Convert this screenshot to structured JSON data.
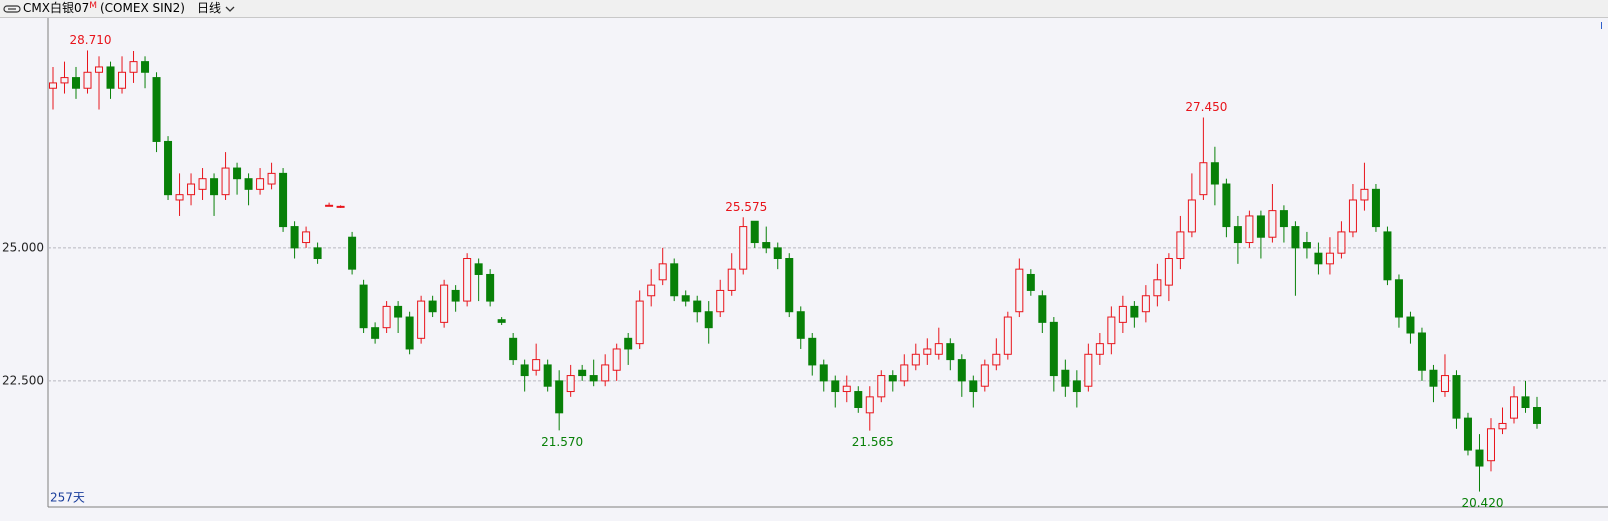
{
  "header": {
    "symbol": "CMX白银07",
    "flag": "M",
    "exchange": "(COMEX SIN2)",
    "period": "日线"
  },
  "chart_data": {
    "type": "candlestick",
    "days_label": "257天",
    "corner_mark": "I",
    "up_color": "#e8141b",
    "down_color": "#088008",
    "ylim": [
      20.13,
      29.32
    ],
    "yticks": [
      {
        "value": 22.5,
        "label": "22.500"
      },
      {
        "value": 25,
        "label": "25.000"
      }
    ],
    "grid": true,
    "annotations": [
      {
        "value": 28.71,
        "label": "28.710"
      },
      {
        "value": 25.575,
        "label": "25.575"
      },
      {
        "value": 27.45,
        "label": "27.450"
      },
      {
        "value": 21.57,
        "label": "21.570"
      },
      {
        "value": 21.565,
        "label": "21.565"
      },
      {
        "value": 20.42,
        "label": "20.420"
      }
    ],
    "candles": [
      [
        28.0,
        28.4,
        27.6,
        28.1
      ],
      [
        28.1,
        28.5,
        27.9,
        28.2
      ],
      [
        28.2,
        28.4,
        27.8,
        28.0
      ],
      [
        28.0,
        28.71,
        27.9,
        28.3
      ],
      [
        28.3,
        28.6,
        27.6,
        28.4
      ],
      [
        28.4,
        28.5,
        27.8,
        28.0
      ],
      [
        28.0,
        28.6,
        27.9,
        28.3
      ],
      [
        28.3,
        28.7,
        28.1,
        28.5
      ],
      [
        28.5,
        28.6,
        28.0,
        28.3
      ],
      [
        28.2,
        28.3,
        26.8,
        27.0
      ],
      [
        27.0,
        27.1,
        25.9,
        26.0
      ],
      [
        25.9,
        26.4,
        25.6,
        26.0
      ],
      [
        26.0,
        26.4,
        25.8,
        26.2
      ],
      [
        26.1,
        26.5,
        25.9,
        26.3
      ],
      [
        26.3,
        26.4,
        25.6,
        26.0
      ],
      [
        26.0,
        26.8,
        25.9,
        26.5
      ],
      [
        26.5,
        26.6,
        26.0,
        26.3
      ],
      [
        26.3,
        26.4,
        25.8,
        26.1
      ],
      [
        26.1,
        26.5,
        26.0,
        26.3
      ],
      [
        26.2,
        26.6,
        26.1,
        26.4
      ],
      [
        26.4,
        26.5,
        25.3,
        25.4
      ],
      [
        25.4,
        25.5,
        24.8,
        25.0
      ],
      [
        25.1,
        25.4,
        25.0,
        25.3
      ],
      [
        25.0,
        25.1,
        24.7,
        24.8
      ],
      [
        25.8,
        25.85,
        25.78,
        25.8
      ],
      [
        25.78,
        25.8,
        25.75,
        25.78
      ],
      [
        25.2,
        25.3,
        24.5,
        24.6
      ],
      [
        24.3,
        24.4,
        23.4,
        23.5
      ],
      [
        23.5,
        23.6,
        23.2,
        23.3
      ],
      [
        23.5,
        24.0,
        23.4,
        23.9
      ],
      [
        23.9,
        24.0,
        23.4,
        23.7
      ],
      [
        23.7,
        23.8,
        23.0,
        23.1
      ],
      [
        23.3,
        24.1,
        23.2,
        24.0
      ],
      [
        24.0,
        24.1,
        23.7,
        23.8
      ],
      [
        23.6,
        24.4,
        23.5,
        24.3
      ],
      [
        24.2,
        24.3,
        23.8,
        24.0
      ],
      [
        24.0,
        24.9,
        23.9,
        24.8
      ],
      [
        24.7,
        24.8,
        24.0,
        24.5
      ],
      [
        24.5,
        24.6,
        23.9,
        24.0
      ],
      [
        23.65,
        23.7,
        23.55,
        23.6
      ],
      [
        23.3,
        23.4,
        22.8,
        22.9
      ],
      [
        22.8,
        22.9,
        22.3,
        22.6
      ],
      [
        22.7,
        23.2,
        22.6,
        22.9
      ],
      [
        22.8,
        22.9,
        22.3,
        22.4
      ],
      [
        22.5,
        22.7,
        21.57,
        21.9
      ],
      [
        22.3,
        22.8,
        22.2,
        22.6
      ],
      [
        22.7,
        22.8,
        22.5,
        22.6
      ],
      [
        22.6,
        22.9,
        22.4,
        22.5
      ],
      [
        22.5,
        23.0,
        22.4,
        22.8
      ],
      [
        22.7,
        23.2,
        22.5,
        23.1
      ],
      [
        23.3,
        23.4,
        22.8,
        23.1
      ],
      [
        23.2,
        24.2,
        23.1,
        24.0
      ],
      [
        24.1,
        24.6,
        23.9,
        24.3
      ],
      [
        24.4,
        25.0,
        24.3,
        24.7
      ],
      [
        24.7,
        24.8,
        24.0,
        24.1
      ],
      [
        24.1,
        24.2,
        23.9,
        24.0
      ],
      [
        24.0,
        24.1,
        23.6,
        23.8
      ],
      [
        23.8,
        24.0,
        23.2,
        23.5
      ],
      [
        23.8,
        24.4,
        23.7,
        24.2
      ],
      [
        24.2,
        24.9,
        24.1,
        24.6
      ],
      [
        24.6,
        25.575,
        24.5,
        25.4
      ],
      [
        25.5,
        25.5,
        25.0,
        25.1
      ],
      [
        25.1,
        25.4,
        24.9,
        25.0
      ],
      [
        25.0,
        25.1,
        24.6,
        24.8
      ],
      [
        24.8,
        24.9,
        23.7,
        23.8
      ],
      [
        23.8,
        23.9,
        23.1,
        23.3
      ],
      [
        23.3,
        23.4,
        22.6,
        22.8
      ],
      [
        22.8,
        22.9,
        22.3,
        22.5
      ],
      [
        22.5,
        22.6,
        22.0,
        22.3
      ],
      [
        22.3,
        22.6,
        22.1,
        22.4
      ],
      [
        22.3,
        22.4,
        21.9,
        22.0
      ],
      [
        21.9,
        22.4,
        21.565,
        22.2
      ],
      [
        22.2,
        22.7,
        22.1,
        22.6
      ],
      [
        22.6,
        22.7,
        22.3,
        22.5
      ],
      [
        22.5,
        23.0,
        22.4,
        22.8
      ],
      [
        22.8,
        23.2,
        22.7,
        23.0
      ],
      [
        23.0,
        23.3,
        22.8,
        23.1
      ],
      [
        23.0,
        23.5,
        22.9,
        23.2
      ],
      [
        23.2,
        23.3,
        22.7,
        22.9
      ],
      [
        22.9,
        23.0,
        22.2,
        22.5
      ],
      [
        22.5,
        22.6,
        22.0,
        22.3
      ],
      [
        22.4,
        22.9,
        22.3,
        22.8
      ],
      [
        22.8,
        23.3,
        22.7,
        23.0
      ],
      [
        23.0,
        23.8,
        22.9,
        23.7
      ],
      [
        23.8,
        24.8,
        23.7,
        24.6
      ],
      [
        24.5,
        24.6,
        24.1,
        24.2
      ],
      [
        24.1,
        24.2,
        23.4,
        23.6
      ],
      [
        23.6,
        23.7,
        22.3,
        22.6
      ],
      [
        22.7,
        22.9,
        22.2,
        22.4
      ],
      [
        22.5,
        22.7,
        22.0,
        22.3
      ],
      [
        22.4,
        23.2,
        22.3,
        23.0
      ],
      [
        23.0,
        23.4,
        22.8,
        23.2
      ],
      [
        23.2,
        23.9,
        23.0,
        23.7
      ],
      [
        23.6,
        24.1,
        23.4,
        23.9
      ],
      [
        23.9,
        24.0,
        23.5,
        23.7
      ],
      [
        23.8,
        24.3,
        23.6,
        24.1
      ],
      [
        24.1,
        24.7,
        23.9,
        24.4
      ],
      [
        24.3,
        24.9,
        24.0,
        24.8
      ],
      [
        24.8,
        25.6,
        24.6,
        25.3
      ],
      [
        25.3,
        26.4,
        25.2,
        25.9
      ],
      [
        26.0,
        27.45,
        25.9,
        26.6
      ],
      [
        26.6,
        26.9,
        25.8,
        26.2
      ],
      [
        26.2,
        26.3,
        25.2,
        25.4
      ],
      [
        25.4,
        25.6,
        24.7,
        25.1
      ],
      [
        25.1,
        25.7,
        25.0,
        25.6
      ],
      [
        25.6,
        25.7,
        24.8,
        25.2
      ],
      [
        25.2,
        26.2,
        25.1,
        25.7
      ],
      [
        25.7,
        25.8,
        25.1,
        25.4
      ],
      [
        25.4,
        25.5,
        24.1,
        25.0
      ],
      [
        25.1,
        25.3,
        24.8,
        25.0
      ],
      [
        24.9,
        25.1,
        24.5,
        24.7
      ],
      [
        24.7,
        25.2,
        24.5,
        24.9
      ],
      [
        24.9,
        25.5,
        24.8,
        25.3
      ],
      [
        25.3,
        26.2,
        25.2,
        25.9
      ],
      [
        25.9,
        26.6,
        25.7,
        26.1
      ],
      [
        26.1,
        26.2,
        25.3,
        25.4
      ],
      [
        25.3,
        25.4,
        24.3,
        24.4
      ],
      [
        24.4,
        24.5,
        23.5,
        23.7
      ],
      [
        23.7,
        23.8,
        23.2,
        23.4
      ],
      [
        23.4,
        23.5,
        22.5,
        22.7
      ],
      [
        22.7,
        22.8,
        22.1,
        22.4
      ],
      [
        22.3,
        23.0,
        22.2,
        22.6
      ],
      [
        22.6,
        22.7,
        21.6,
        21.8
      ],
      [
        21.8,
        21.9,
        21.1,
        21.2
      ],
      [
        21.2,
        21.5,
        20.42,
        20.9
      ],
      [
        21.0,
        21.8,
        20.8,
        21.6
      ],
      [
        21.6,
        22.0,
        21.5,
        21.7
      ],
      [
        21.8,
        22.4,
        21.7,
        22.2
      ],
      [
        22.2,
        22.5,
        21.9,
        22.0
      ],
      [
        22.0,
        22.2,
        21.6,
        21.7
      ]
    ]
  }
}
